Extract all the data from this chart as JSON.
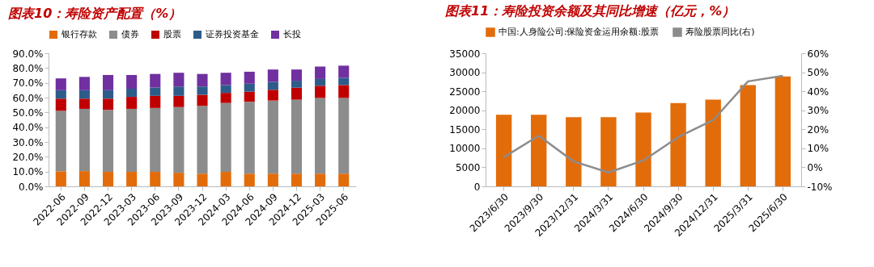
{
  "chart_data": [
    {
      "type": "bar",
      "title": "图表10：寿险资产配置（%）",
      "stacked": true,
      "legend": "top",
      "grid": false,
      "categories": [
        "2022-06",
        "2022-09",
        "2022-12",
        "2023-03",
        "2023-06",
        "2023-09",
        "2023-12",
        "2024-03",
        "2024-06",
        "2024-09",
        "2024-12",
        "2025-03",
        "2025-06"
      ],
      "ylim": [
        0,
        90
      ],
      "yticks": [
        {
          "value": 0,
          "label": "0.0%"
        },
        {
          "value": 10,
          "label": "10.0%"
        },
        {
          "value": 20,
          "label": "20.0%"
        },
        {
          "value": 30,
          "label": "30.0%"
        },
        {
          "value": 40,
          "label": "40.0%"
        },
        {
          "value": 50,
          "label": "50.0%"
        },
        {
          "value": 60,
          "label": "60.0%"
        },
        {
          "value": 70,
          "label": "70.0%"
        },
        {
          "value": 80,
          "label": "80.0%"
        },
        {
          "value": 90,
          "label": "90.0%"
        }
      ],
      "series": [
        {
          "name": "银行存款",
          "color": "#e36c0a",
          "values": [
            10.2,
            10.3,
            9.8,
            9.8,
            9.8,
            9.2,
            8.6,
            9.8,
            8.6,
            8.6,
            8.6,
            8.6,
            8.6
          ]
        },
        {
          "name": "债券",
          "color": "#8c8c8c",
          "values": [
            40.9,
            42.1,
            41.9,
            42.6,
            43.2,
            44.4,
            45.8,
            46.6,
            48.6,
            49.4,
            50.0,
            51.2,
            51.2
          ]
        },
        {
          "name": "股票",
          "color": "#c00000",
          "values": [
            8.2,
            6.9,
            7.6,
            8.1,
            8.2,
            7.6,
            7.5,
            6.8,
            6.8,
            7.3,
            8.1,
            8.2,
            8.7
          ]
        },
        {
          "name": "证券投资基金",
          "color": "#2e5c8a",
          "values": [
            5.7,
            5.7,
            5.7,
            5.5,
            5.6,
            6.3,
            5.6,
            5.3,
            5.4,
            5.4,
            4.7,
            4.6,
            4.9
          ]
        },
        {
          "name": "长投",
          "color": "#7030a0",
          "values": [
            8.0,
            9.0,
            10.3,
            9.3,
            9.2,
            9.3,
            8.5,
            8.3,
            8.1,
            8.3,
            7.6,
            8.4,
            8.2
          ]
        }
      ]
    },
    {
      "type": "bar",
      "title": "图表11：寿险投资余额及其同比增速（亿元，%）",
      "legend": "top",
      "grid": false,
      "categories": [
        "2023/6/30",
        "2023/9/30",
        "2023/12/31",
        "2024/3/31",
        "2024/6/30",
        "2024/9/30",
        "2024/12/31",
        "2025/3/31",
        "2025/6/30"
      ],
      "ylim": [
        0,
        35000
      ],
      "yticks": [
        0,
        5000,
        10000,
        15000,
        20000,
        25000,
        30000,
        35000
      ],
      "y2lim": [
        -10,
        60
      ],
      "y2ticks": [
        {
          "value": -10,
          "label": "-10%"
        },
        {
          "value": 0,
          "label": "0%"
        },
        {
          "value": 10,
          "label": "10%"
        },
        {
          "value": 20,
          "label": "20%"
        },
        {
          "value": 30,
          "label": "30%"
        },
        {
          "value": 40,
          "label": "40%"
        },
        {
          "value": 50,
          "label": "50%"
        },
        {
          "value": 60,
          "label": "60%"
        }
      ],
      "series": [
        {
          "name": "中国:人身险公司:保险资金运用余额:股票",
          "color": "#e36c0a",
          "values": [
            18800,
            18800,
            18200,
            18200,
            19400,
            21900,
            22800,
            26600,
            28900
          ]
        },
        {
          "name": "寿险股票同比(右)",
          "type": "line",
          "axis": "y2",
          "marker": "none",
          "color": "#8c8c8c",
          "values": [
            5.3,
            16.6,
            3.1,
            -2.7,
            3.6,
            15.9,
            24.8,
            45.2,
            48.1
          ]
        }
      ]
    }
  ]
}
